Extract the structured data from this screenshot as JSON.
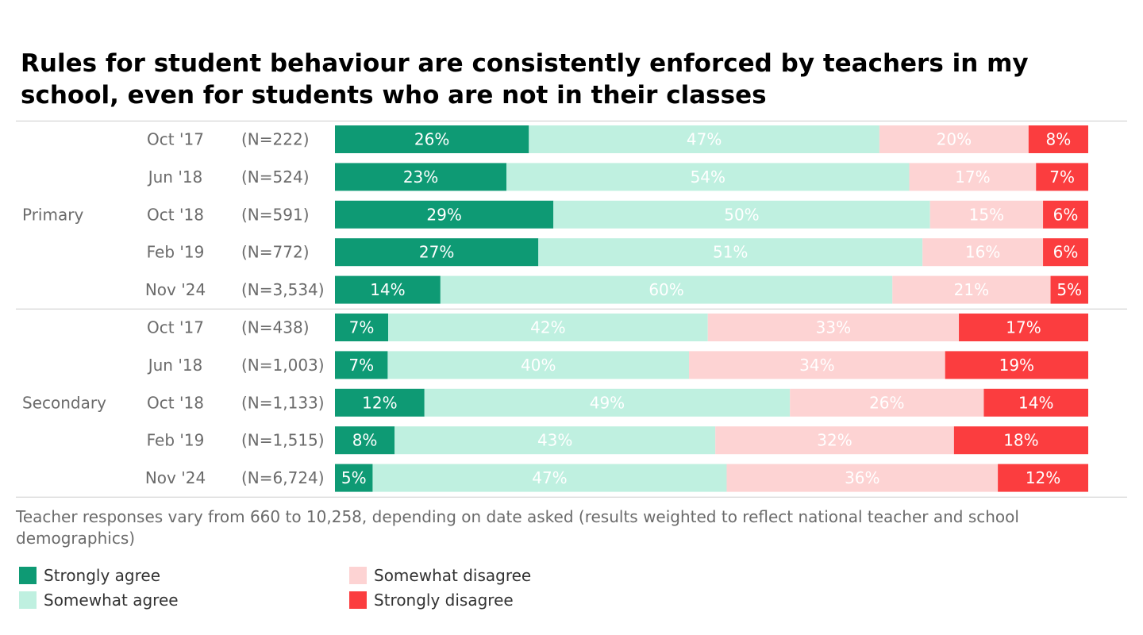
{
  "title": "Rules for student behaviour are consistently enforced by teachers in my school, even for students who are not in their classes",
  "note": "Teacher responses vary from 660 to 10,258, depending on date asked (results weighted to reflect national teacher and school demographics)",
  "colors": {
    "strongly_agree": "#0e9a74",
    "somewhat_agree": "#bff0e0",
    "somewhat_disagree": "#fdd3d3",
    "strongly_disagree": "#fb3d3f"
  },
  "legend": [
    {
      "label": "Strongly agree",
      "color": "#0e9a74"
    },
    {
      "label": "Somewhat agree",
      "color": "#bff0e0"
    },
    {
      "label": "Somewhat disagree",
      "color": "#fdd3d3"
    },
    {
      "label": "Strongly disagree",
      "color": "#fb3d3f"
    }
  ],
  "chart_data": {
    "type": "bar",
    "orientation": "horizontal",
    "stacked": true,
    "title": "Rules for student behaviour are consistently enforced by teachers in my school, even for students who are not in their classes",
    "series_names": [
      "Strongly agree",
      "Somewhat agree",
      "Somewhat disagree",
      "Strongly disagree"
    ],
    "groups": [
      {
        "name": "Primary",
        "rows": [
          {
            "date": "Oct '17",
            "n": "(N=222)",
            "values": [
              26,
              47,
              20,
              8
            ]
          },
          {
            "date": "Jun '18",
            "n": "(N=524)",
            "values": [
              23,
              54,
              17,
              7
            ]
          },
          {
            "date": "Oct '18",
            "n": "(N=591)",
            "values": [
              29,
              50,
              15,
              6
            ]
          },
          {
            "date": "Feb '19",
            "n": "(N=772)",
            "values": [
              27,
              51,
              16,
              6
            ]
          },
          {
            "date": "Nov '24",
            "n": "(N=3,534)",
            "values": [
              14,
              60,
              21,
              5
            ]
          }
        ]
      },
      {
        "name": "Secondary",
        "rows": [
          {
            "date": "Oct '17",
            "n": "(N=438)",
            "values": [
              7,
              42,
              33,
              17
            ]
          },
          {
            "date": "Jun '18",
            "n": "(N=1,003)",
            "values": [
              7,
              40,
              34,
              19
            ]
          },
          {
            "date": "Oct '18",
            "n": "(N=1,133)",
            "values": [
              12,
              49,
              26,
              14
            ]
          },
          {
            "date": "Feb '19",
            "n": "(N=1,515)",
            "values": [
              8,
              43,
              32,
              18
            ]
          },
          {
            "date": "Nov '24",
            "n": "(N=6,724)",
            "values": [
              5,
              47,
              36,
              12
            ]
          }
        ]
      }
    ],
    "value_format": "{v}%",
    "grid": false,
    "legend_position": "bottom"
  }
}
